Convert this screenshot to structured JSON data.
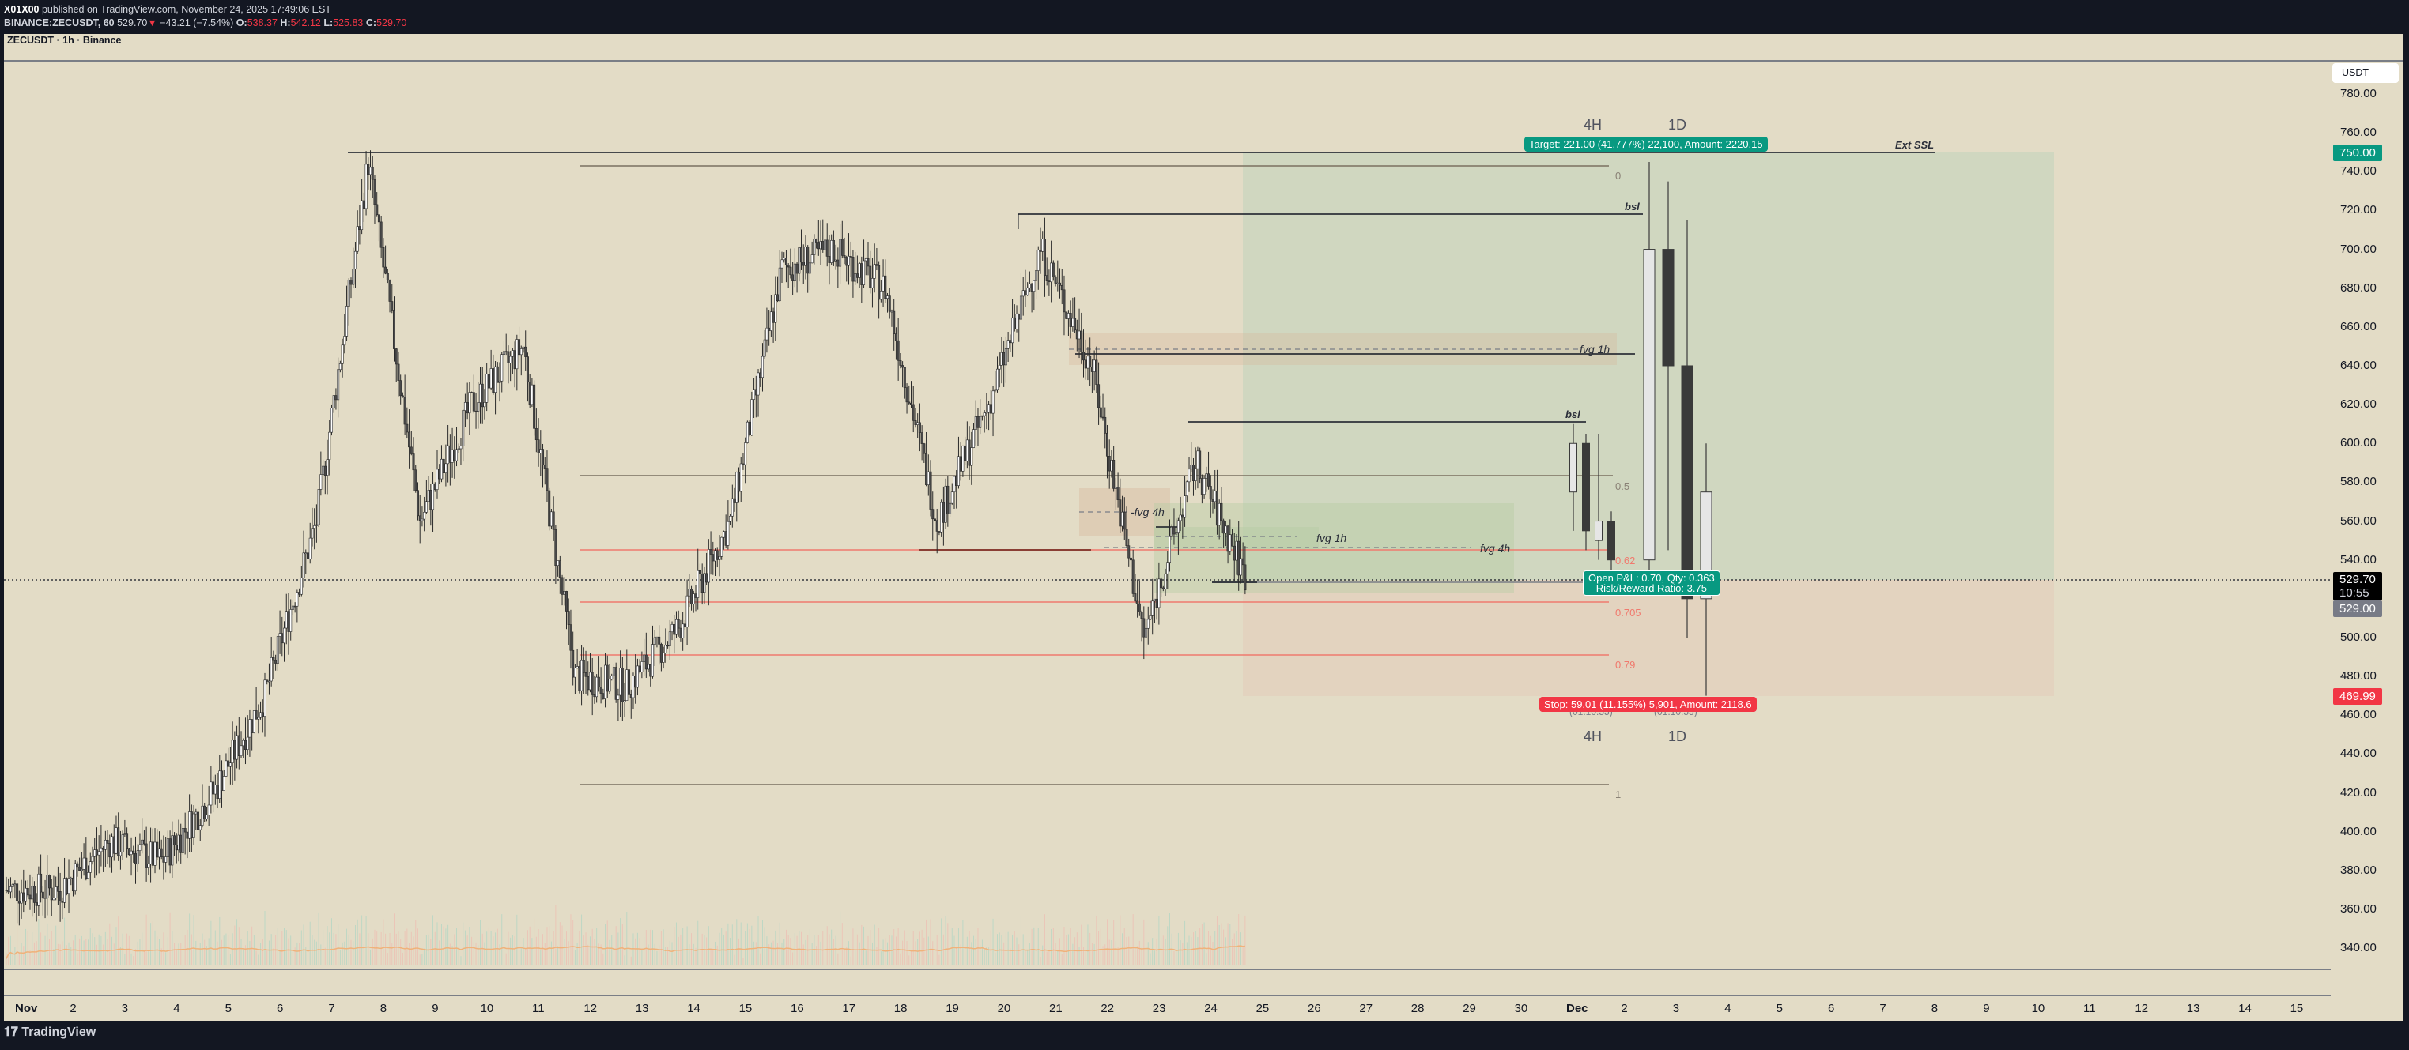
{
  "header": {
    "publisher": "X01X00",
    "published_text": "published on TradingView.com, November 24, 2025 17:49:06 EST",
    "symbol_line": "BINANCE:ZECUSDT, 60",
    "last": "529.70",
    "change_arrow": "▼",
    "change": "−43.21 (−7.54%)",
    "o_label": "O:",
    "o": "538.37",
    "h_label": "H:",
    "h": "542.12",
    "l_label": "L:",
    "l": "525.83",
    "c_label": "C:",
    "c": "529.70"
  },
  "chart": {
    "title": "ZECUSDT · 1h · Binance",
    "currency": "USDT",
    "footer_brand": "TradingView"
  },
  "colors": {
    "background": "#e3dcc6",
    "frame": "#131722",
    "target": "#089981",
    "stop": "#f23645",
    "fib_red": "#f07a6e",
    "grey_level": "#7a7060",
    "long_zone": "#cfd6c0",
    "short_zone": "#e3d2bf",
    "fvg_zone": "#e2cdb5"
  },
  "chart_data": {
    "type": "candlestick",
    "title": "ZECUSDT · 1h · Binance",
    "xlabel": "",
    "ylabel": "USDT",
    "ylim": [
      330,
      790
    ],
    "y_ticks": [
      780,
      760,
      740,
      720,
      700,
      680,
      660,
      640,
      620,
      600,
      580,
      560,
      540,
      500,
      480,
      460,
      440,
      420,
      400,
      380,
      360,
      340
    ],
    "x_ticks": [
      "Nov",
      "2",
      "3",
      "4",
      "5",
      "6",
      "7",
      "8",
      "9",
      "10",
      "11",
      "12",
      "13",
      "14",
      "15",
      "16",
      "17",
      "18",
      "19",
      "20",
      "21",
      "22",
      "23",
      "24",
      "25",
      "26",
      "27",
      "28",
      "29",
      "30",
      "Dec",
      "2",
      "3",
      "4",
      "5",
      "6",
      "7",
      "8",
      "9",
      "10",
      "11",
      "12",
      "13",
      "14",
      "15"
    ],
    "close_path_by_day": [
      {
        "day": "Nov 1",
        "close": 370
      },
      {
        "day": "Nov 2",
        "close": 395
      },
      {
        "day": "Nov 3",
        "close": 385
      },
      {
        "day": "Nov 4",
        "close": 420
      },
      {
        "day": "Nov 5",
        "close": 470
      },
      {
        "day": "Nov 6",
        "close": 560
      },
      {
        "day": "Nov 7",
        "close": 745
      },
      {
        "day": "Nov 8",
        "close": 560
      },
      {
        "day": "Nov 9",
        "close": 620
      },
      {
        "day": "Nov 10",
        "close": 650
      },
      {
        "day": "Nov 11",
        "close": 480
      },
      {
        "day": "Nov 12",
        "close": 475
      },
      {
        "day": "Nov 13",
        "close": 505
      },
      {
        "day": "Nov 14",
        "close": 560
      },
      {
        "day": "Nov 15",
        "close": 690
      },
      {
        "day": "Nov 16",
        "close": 700
      },
      {
        "day": "Nov 17",
        "close": 680
      },
      {
        "day": "Nov 18",
        "close": 560
      },
      {
        "day": "Nov 19",
        "close": 620
      },
      {
        "day": "Nov 20",
        "close": 700
      },
      {
        "day": "Nov 21",
        "close": 640
      },
      {
        "day": "Nov 22",
        "close": 500
      },
      {
        "day": "Nov 23",
        "close": 590
      },
      {
        "day": "Nov 24",
        "close": 529.7
      }
    ],
    "projection_candles_4H_1D": [
      {
        "label": "4H",
        "ohlc": [
          [
            575,
            610,
            555,
            600
          ],
          [
            600,
            605,
            545,
            555
          ],
          [
            550,
            605,
            540,
            560
          ],
          [
            560,
            565,
            530,
            540
          ]
        ]
      },
      {
        "label": "1D",
        "ohlc": [
          [
            540,
            745,
            535,
            700
          ],
          [
            700,
            735,
            545,
            640
          ],
          [
            640,
            715,
            500,
            520
          ],
          [
            520,
            600,
            470,
            575
          ]
        ]
      }
    ],
    "last_price": 529.7,
    "countdown": "10:55",
    "annotations": {
      "ext_ssl": 750.0,
      "bsl_upper": 718,
      "bsl_lower": 612,
      "fvg_1h_upper": [
        633,
        655
      ],
      "fvg_1h_lower": [
        545,
        565
      ],
      "fvg_4h_upper": [
        555,
        575
      ],
      "fvg_4h": [
        525,
        567
      ],
      "fib_0": 742,
      "fib_0_5": 583,
      "fib_0_62": 545,
      "fib_0_705": 518,
      "fib_0_79": 491,
      "fib_1": 424
    },
    "position": {
      "entry": 529.0,
      "target": 750.0,
      "stop": 469.99
    },
    "volume": "shown as faint bars with orange moving average along the bottom"
  },
  "price_axis": {
    "ticks": [
      "780.00",
      "760.00",
      "740.00",
      "720.00",
      "700.00",
      "680.00",
      "660.00",
      "640.00",
      "620.00",
      "600.00",
      "580.00",
      "560.00",
      "540.00",
      "500.00",
      "480.00",
      "460.00",
      "440.00",
      "420.00",
      "400.00",
      "380.00",
      "360.00",
      "340.00"
    ],
    "target_tag": "750.00",
    "last_tag": "529.70",
    "countdown_tag": "10:55",
    "entry_tag": "529.00",
    "stop_tag": "469.99"
  },
  "time_axis": {
    "labels": [
      "Nov",
      "2",
      "3",
      "4",
      "5",
      "6",
      "7",
      "8",
      "9",
      "10",
      "11",
      "12",
      "13",
      "14",
      "15",
      "16",
      "17",
      "18",
      "19",
      "20",
      "21",
      "22",
      "23",
      "24",
      "25",
      "26",
      "27",
      "28",
      "29",
      "30",
      "Dec",
      "2",
      "3",
      "4",
      "5",
      "6",
      "7",
      "8",
      "9",
      "10",
      "11",
      "12",
      "13",
      "14",
      "15"
    ]
  },
  "drawings": {
    "target_label": "Target: 221.00 (41.777%) 22,100, Amount: 2220.15",
    "stop_label": "Stop: 59.01 (11.155%) 5,901, Amount: 2118.6",
    "pnl_label": "Open P&L: 0.70, Qty: 0.363",
    "rr_label": "Risk/Reward Ratio: 3.75",
    "ext_ssl": "Ext SSL",
    "bsl_top": "bsl",
    "bsl_mid": "bsl",
    "fvg_1h_top": "fvg 1h",
    "fvg_4h_left": "-fvg 4h",
    "fvg_1h_low": "fvg 1h",
    "fvg_4h_low": "fvg 4h",
    "fib_0": "0",
    "fib_05": "0.5",
    "fib_062": "0.62",
    "fib_0705": "0.705",
    "fib_079": "0.79",
    "fib_1": "1",
    "tf_4h_top": "4H",
    "tf_1d_top": "1D",
    "tf_4h_bottom": "4H",
    "tf_1d_bottom": "1D",
    "countdown_4h": "(01:10:55)",
    "countdown_1d": "(01:10:55)"
  }
}
